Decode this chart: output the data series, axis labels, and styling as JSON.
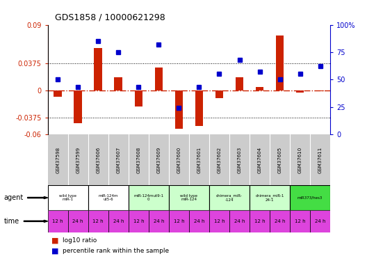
{
  "title": "GDS1858 / 10000621298",
  "samples": [
    "GSM37598",
    "GSM37599",
    "GSM37606",
    "GSM37607",
    "GSM37608",
    "GSM37609",
    "GSM37600",
    "GSM37601",
    "GSM37602",
    "GSM37603",
    "GSM37604",
    "GSM37605",
    "GSM37610",
    "GSM37611"
  ],
  "log10_ratio": [
    -0.008,
    -0.045,
    0.058,
    0.018,
    -0.022,
    0.032,
    -0.052,
    -0.048,
    -0.01,
    0.018,
    0.005,
    0.075,
    -0.003,
    -0.001
  ],
  "percentile_rank": [
    50,
    43,
    85,
    75,
    43,
    82,
    24,
    43,
    55,
    68,
    57,
    50,
    55,
    62
  ],
  "ylim_left": [
    -0.06,
    0.09
  ],
  "yticks_left": [
    -0.06,
    -0.0375,
    0,
    0.0375,
    0.09
  ],
  "ytick_labels_left": [
    "-0.06",
    "-0.0375",
    "0",
    "0.0375",
    "0.09"
  ],
  "ylim_right": [
    0,
    100
  ],
  "yticks_right": [
    0,
    25,
    50,
    75,
    100
  ],
  "ytick_labels_right": [
    "0",
    "25",
    "50",
    "75",
    "100%"
  ],
  "agent_groups": [
    {
      "label": "wild type\nmiR-1",
      "cols": [
        0,
        1
      ],
      "color": "#ffffff"
    },
    {
      "label": "miR-124m\nut5-6",
      "cols": [
        2,
        3
      ],
      "color": "#ffffff"
    },
    {
      "label": "miR-124mut9-1\n0",
      "cols": [
        4,
        5
      ],
      "color": "#ccffcc"
    },
    {
      "label": "wild type\nmiR-124",
      "cols": [
        6,
        7
      ],
      "color": "#ccffcc"
    },
    {
      "label": "chimera_miR-\n-124",
      "cols": [
        8,
        9
      ],
      "color": "#ccffcc"
    },
    {
      "label": "chimera_miR-1\n24-1",
      "cols": [
        10,
        11
      ],
      "color": "#ccffcc"
    },
    {
      "label": "miR373/hes3",
      "cols": [
        12,
        13
      ],
      "color": "#44dd44"
    }
  ],
  "time_labels": [
    "12 h",
    "24 h",
    "12 h",
    "24 h",
    "12 h",
    "24 h",
    "12 h",
    "24 h",
    "12 h",
    "24 h",
    "12 h",
    "24 h",
    "12 h",
    "24 h"
  ],
  "time_color": "#dd44dd",
  "bar_color": "#cc2200",
  "dot_color": "#0000cc",
  "zero_line_color": "#cc2200",
  "grid_color": "#000000",
  "bg_color": "#ffffff",
  "sample_bg": "#cccccc",
  "legend_sq_red": "#cc2200",
  "legend_sq_blue": "#0000cc"
}
